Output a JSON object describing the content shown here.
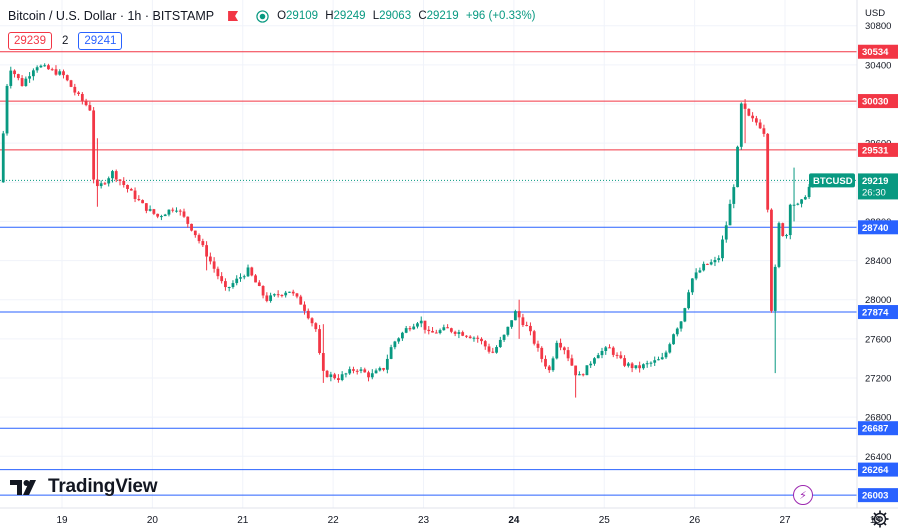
{
  "header": {
    "symbol": "Bitcoin / U.S. Dollar · 1h · BITSTAMP",
    "open_label": "O",
    "open": "29109",
    "high_label": "H",
    "high": "29249",
    "low_label": "L",
    "low": "29063",
    "close_label": "C",
    "close": "29219",
    "change": "+96 (+0.33%)",
    "flag_icon": "flag-icon",
    "eye_icon": "eye-icon"
  },
  "trade": {
    "sell": "29239",
    "spread": "2",
    "buy": "29241"
  },
  "logo_text": "TradingView",
  "currency": "USD",
  "colors": {
    "up": "#089981",
    "down": "#f23645",
    "support": "#2962ff",
    "resistance": "#f23645",
    "last_price": "#089981",
    "grid": "#f0f3fa",
    "text": "#131722"
  },
  "chart_data": {
    "type": "candlestick",
    "instrument": "BTCUSD",
    "timeframe": "1h",
    "ylim": [
      26000,
      30960
    ],
    "y_ticks": [
      26400,
      26800,
      27200,
      27600,
      28000,
      28400,
      28800,
      29200,
      29600,
      30000,
      30400,
      30800
    ],
    "x_ticks": [
      "19",
      "20",
      "21",
      "22",
      "23",
      "24",
      "25",
      "26",
      "27",
      "19"
    ],
    "x_tick_positions": [
      19,
      20,
      21,
      22,
      23,
      24,
      25,
      26,
      27,
      28
    ],
    "x_range": [
      18.35,
      28.0
    ],
    "last_price": {
      "label": "BTCUSD",
      "value": 29219,
      "countdown": "26:30"
    },
    "horizontal_levels": [
      {
        "value": 30534,
        "label": "30534",
        "kind": "resistance"
      },
      {
        "value": 30030,
        "label": "30030",
        "kind": "resistance"
      },
      {
        "value": 29531,
        "label": "29531",
        "kind": "resistance"
      },
      {
        "value": 28740,
        "label": "28740",
        "kind": "support"
      },
      {
        "value": 27874,
        "label": "27874",
        "kind": "support"
      },
      {
        "value": 26687,
        "label": "26687",
        "kind": "support"
      },
      {
        "value": 26264,
        "label": "26264",
        "kind": "support"
      },
      {
        "value": 26003,
        "label": "26003",
        "kind": "support"
      }
    ],
    "path_keypoints": [
      [
        18.35,
        29200
      ],
      [
        18.45,
        30400
      ],
      [
        18.6,
        30200
      ],
      [
        18.75,
        30400
      ],
      [
        18.9,
        30350
      ],
      [
        19.05,
        30300
      ],
      [
        19.2,
        30100
      ],
      [
        19.35,
        29950
      ],
      [
        19.4,
        29100
      ],
      [
        19.6,
        29300
      ],
      [
        19.8,
        29100
      ],
      [
        19.95,
        28950
      ],
      [
        20.1,
        28850
      ],
      [
        20.3,
        28950
      ],
      [
        20.5,
        28700
      ],
      [
        20.65,
        28450
      ],
      [
        20.85,
        28100
      ],
      [
        21.1,
        28300
      ],
      [
        21.3,
        28000
      ],
      [
        21.55,
        28100
      ],
      [
        21.7,
        27950
      ],
      [
        21.85,
        27700
      ],
      [
        21.92,
        27250
      ],
      [
        22.1,
        27200
      ],
      [
        22.3,
        27300
      ],
      [
        22.45,
        27220
      ],
      [
        22.6,
        27300
      ],
      [
        22.7,
        27550
      ],
      [
        22.85,
        27700
      ],
      [
        23.0,
        27800
      ],
      [
        23.1,
        27650
      ],
      [
        23.3,
        27700
      ],
      [
        23.5,
        27650
      ],
      [
        23.65,
        27600
      ],
      [
        23.8,
        27450
      ],
      [
        23.95,
        27650
      ],
      [
        24.05,
        27880
      ],
      [
        24.2,
        27700
      ],
      [
        24.35,
        27400
      ],
      [
        24.45,
        27250
      ],
      [
        24.5,
        27600
      ],
      [
        24.6,
        27500
      ],
      [
        24.75,
        27200
      ],
      [
        24.85,
        27300
      ],
      [
        24.95,
        27450
      ],
      [
        25.1,
        27500
      ],
      [
        25.25,
        27350
      ],
      [
        25.4,
        27300
      ],
      [
        25.55,
        27350
      ],
      [
        25.7,
        27400
      ],
      [
        25.8,
        27650
      ],
      [
        25.9,
        27800
      ],
      [
        26.0,
        28200
      ],
      [
        26.15,
        28350
      ],
      [
        26.3,
        28400
      ],
      [
        26.4,
        28800
      ],
      [
        26.5,
        29300
      ],
      [
        26.55,
        30000
      ],
      [
        26.65,
        29850
      ],
      [
        26.75,
        29800
      ],
      [
        26.82,
        29700
      ],
      [
        26.86,
        28700
      ],
      [
        26.9,
        27700
      ],
      [
        26.96,
        28800
      ],
      [
        27.05,
        28600
      ],
      [
        27.1,
        29000
      ],
      [
        27.2,
        28950
      ],
      [
        27.28,
        29100
      ],
      [
        27.35,
        29219
      ]
    ],
    "wick_extremes": [
      [
        19.4,
        29650,
        28950
      ],
      [
        20.6,
        28400,
        28300
      ],
      [
        21.9,
        27750,
        27150
      ],
      [
        24.05,
        28000,
        27600
      ],
      [
        24.7,
        27200,
        27000
      ],
      [
        26.55,
        30050,
        29600
      ],
      [
        26.9,
        28100,
        27250
      ],
      [
        27.1,
        29350,
        28800
      ]
    ]
  }
}
